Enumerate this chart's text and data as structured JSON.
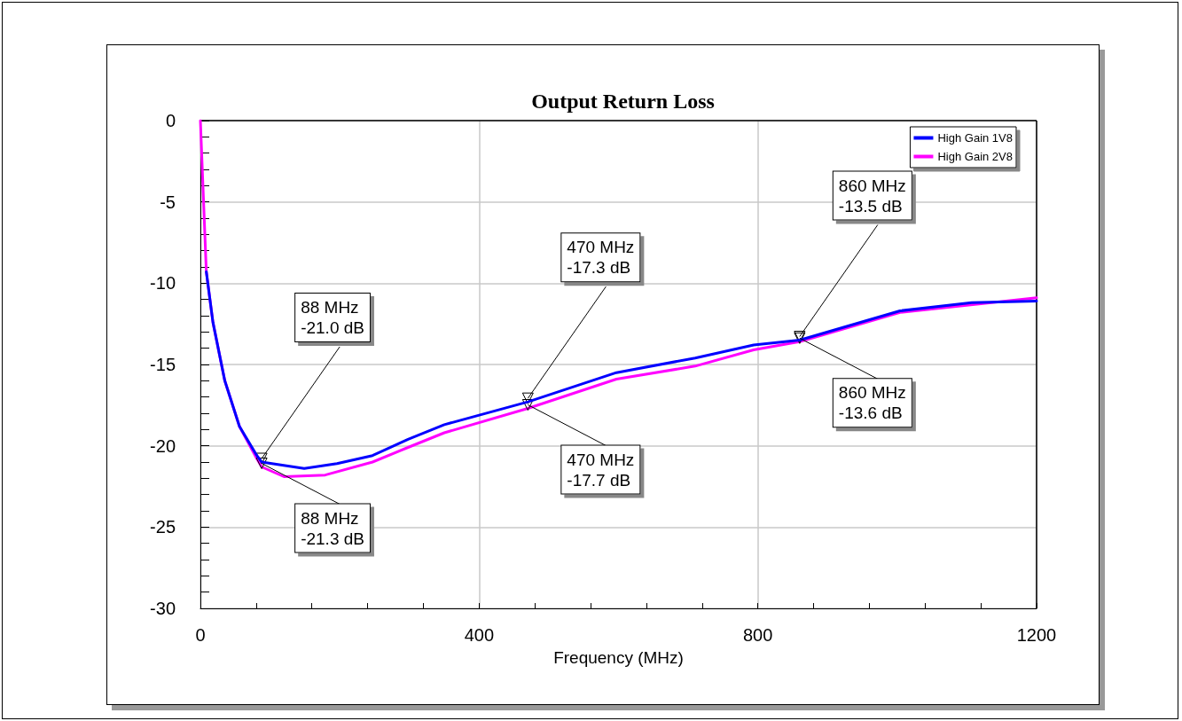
{
  "chart_data": {
    "type": "line",
    "title": "Output Return Loss",
    "xlabel": "Frequency (MHz)",
    "xlim": [
      0,
      1200
    ],
    "xticks": [
      0,
      400,
      800,
      1200
    ],
    "ylim": [
      -30,
      0
    ],
    "yticks": [
      -30,
      -25,
      -20,
      -15,
      -10,
      -5,
      0
    ],
    "grid": true,
    "legend": "top right",
    "marker": "none",
    "line_style": "solid",
    "series": [
      {
        "name": "High Gain 1V8",
        "color": "#0000ff",
        "x": [
          8.5,
          18,
          35,
          56,
          81,
          88,
          149,
          196,
          247,
          298,
          350,
          470,
          597,
          710,
          794,
          860,
          1004,
          1107,
          1200
        ],
        "values": [
          -9.3,
          -12.4,
          -16.0,
          -18.8,
          -20.6,
          -21.0,
          -21.4,
          -21.1,
          -20.6,
          -19.6,
          -18.7,
          -17.3,
          -15.5,
          -14.6,
          -13.8,
          -13.5,
          -11.7,
          -11.2,
          -11.1
        ]
      },
      {
        "name": "High Gain 2V8",
        "color": "#ff00ff",
        "x": [
          0,
          8.5,
          18,
          35,
          56,
          81,
          88,
          120,
          179,
          247,
          298,
          350,
          470,
          597,
          710,
          794,
          860,
          1004,
          1200
        ],
        "values": [
          0,
          -9.3,
          -12.4,
          -16.0,
          -18.8,
          -20.8,
          -21.3,
          -21.9,
          -21.8,
          -21.0,
          -20.1,
          -19.2,
          -17.7,
          -15.9,
          -15.1,
          -14.1,
          -13.6,
          -11.8,
          -10.9
        ]
      }
    ],
    "annotations": [
      {
        "text": "88 MHz\n-21.0 dB",
        "x": 88,
        "y": -21.0
      },
      {
        "text": "88 MHz\n-21.3 dB",
        "x": 88,
        "y": -21.3
      },
      {
        "text": "470 MHz\n-17.3 dB",
        "x": 470,
        "y": -17.3
      },
      {
        "text": "470 MHz\n-17.7 dB",
        "x": 470,
        "y": -17.7
      },
      {
        "text": "860 MHz\n-13.5 dB",
        "x": 860,
        "y": -13.5
      },
      {
        "text": "860 MHz\n-13.6 dB",
        "x": 860,
        "y": -13.6
      }
    ]
  }
}
